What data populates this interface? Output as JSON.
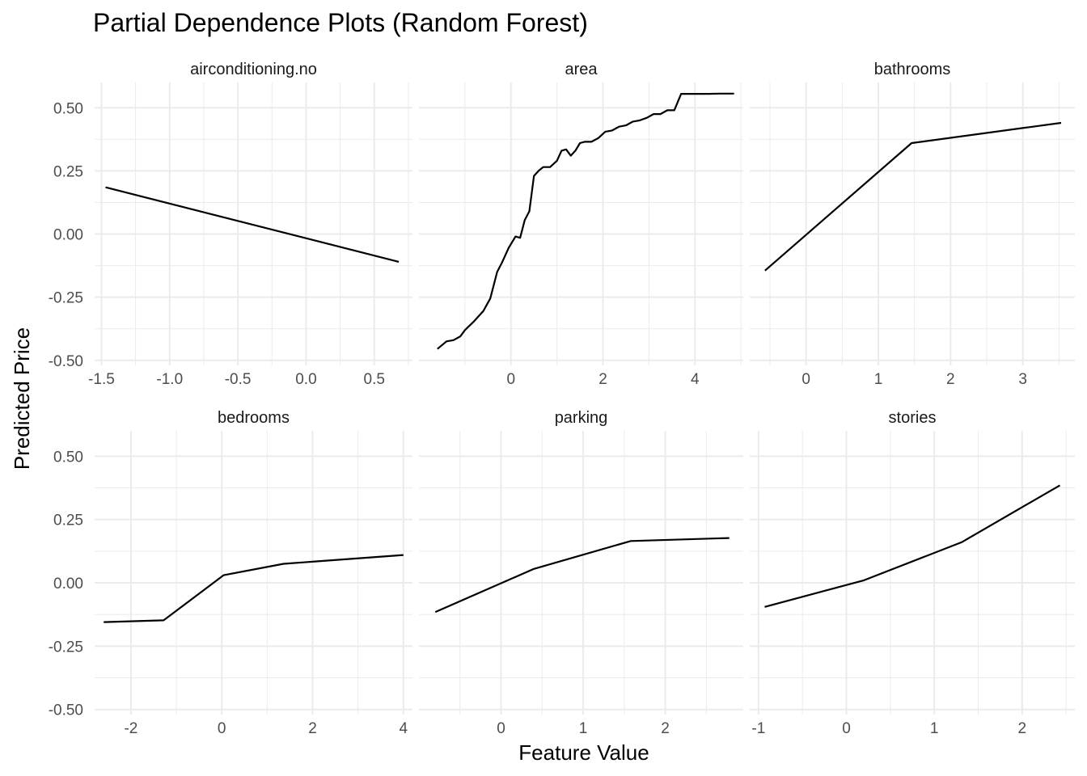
{
  "chart_data": {
    "type": "line",
    "title": "Partial Dependence Plots (Random Forest)",
    "xlabel": "Feature Value",
    "ylabel": "Predicted Price",
    "ylim": [
      -0.52,
      0.6
    ],
    "yticks": [
      -0.5,
      -0.25,
      0.0,
      0.25,
      0.5
    ],
    "ytick_labels": [
      "-0.50",
      "-0.25",
      "0.00",
      "0.25",
      "0.50"
    ],
    "grid": true,
    "facets": [
      {
        "name": "airconditioning.no",
        "xlim": [
          -1.55,
          0.78
        ],
        "xticks": [
          -1.5,
          -1.0,
          -0.5,
          0.0,
          0.5
        ],
        "xtick_labels": [
          "-1.5",
          "-1.0",
          "-0.5",
          "0.0",
          "0.5"
        ],
        "x": [
          -1.47,
          0.68
        ],
        "y": [
          0.185,
          -0.11
        ]
      },
      {
        "name": "area",
        "xlim": [
          -2.0,
          5.05
        ],
        "xticks": [
          0,
          2,
          4
        ],
        "xtick_labels": [
          "0",
          "2",
          "4"
        ],
        "x": [
          -1.6,
          -1.4,
          -1.25,
          -1.1,
          -1.0,
          -0.8,
          -0.6,
          -0.45,
          -0.3,
          -0.2,
          -0.05,
          0.1,
          0.2,
          0.3,
          0.4,
          0.5,
          0.6,
          0.7,
          0.85,
          1.0,
          1.1,
          1.2,
          1.3,
          1.4,
          1.5,
          1.6,
          1.75,
          1.9,
          2.05,
          2.2,
          2.35,
          2.5,
          2.65,
          2.8,
          2.95,
          3.1,
          3.25,
          3.4,
          3.55,
          3.7,
          3.85,
          4.05,
          4.3,
          4.55,
          4.85
        ],
        "y": [
          -0.455,
          -0.425,
          -0.42,
          -0.405,
          -0.38,
          -0.345,
          -0.305,
          -0.255,
          -0.15,
          -0.115,
          -0.055,
          -0.01,
          -0.015,
          0.055,
          0.09,
          0.23,
          0.25,
          0.265,
          0.265,
          0.29,
          0.33,
          0.335,
          0.31,
          0.33,
          0.36,
          0.365,
          0.365,
          0.38,
          0.405,
          0.41,
          0.425,
          0.43,
          0.445,
          0.45,
          0.46,
          0.475,
          0.475,
          0.49,
          0.49,
          0.555,
          0.555,
          0.555,
          0.555,
          0.556,
          0.556
        ]
      },
      {
        "name": "bathrooms",
        "xlim": [
          -0.78,
          3.72
        ],
        "xticks": [
          0,
          1,
          2,
          3
        ],
        "xtick_labels": [
          "0",
          "1",
          "2",
          "3"
        ],
        "x": [
          -0.57,
          1.46,
          3.53
        ],
        "y": [
          -0.145,
          0.36,
          0.44
        ]
      },
      {
        "name": "bedrooms",
        "xlim": [
          -2.8,
          4.2
        ],
        "xticks": [
          -2,
          0,
          2,
          4
        ],
        "xtick_labels": [
          "-2",
          "0",
          "2",
          "4"
        ],
        "x": [
          -2.6,
          -1.28,
          0.04,
          1.36,
          4.0
        ],
        "y": [
          -0.155,
          -0.148,
          0.03,
          0.075,
          0.11
        ]
      },
      {
        "name": "parking",
        "xlim": [
          -1.0,
          2.95
        ],
        "xticks": [
          0,
          1,
          2
        ],
        "xtick_labels": [
          "0",
          "1",
          "2"
        ],
        "x": [
          -0.8,
          0.4,
          1.58,
          2.78
        ],
        "y": [
          -0.115,
          0.055,
          0.165,
          0.177
        ]
      },
      {
        "name": "stories",
        "xlim": [
          -1.1,
          2.6
        ],
        "xticks": [
          -1,
          0,
          1,
          2
        ],
        "xtick_labels": [
          "-1",
          "0",
          "1",
          "2"
        ],
        "x": [
          -0.93,
          0.2,
          1.31,
          2.43
        ],
        "y": [
          -0.095,
          0.01,
          0.16,
          0.385
        ]
      }
    ]
  }
}
